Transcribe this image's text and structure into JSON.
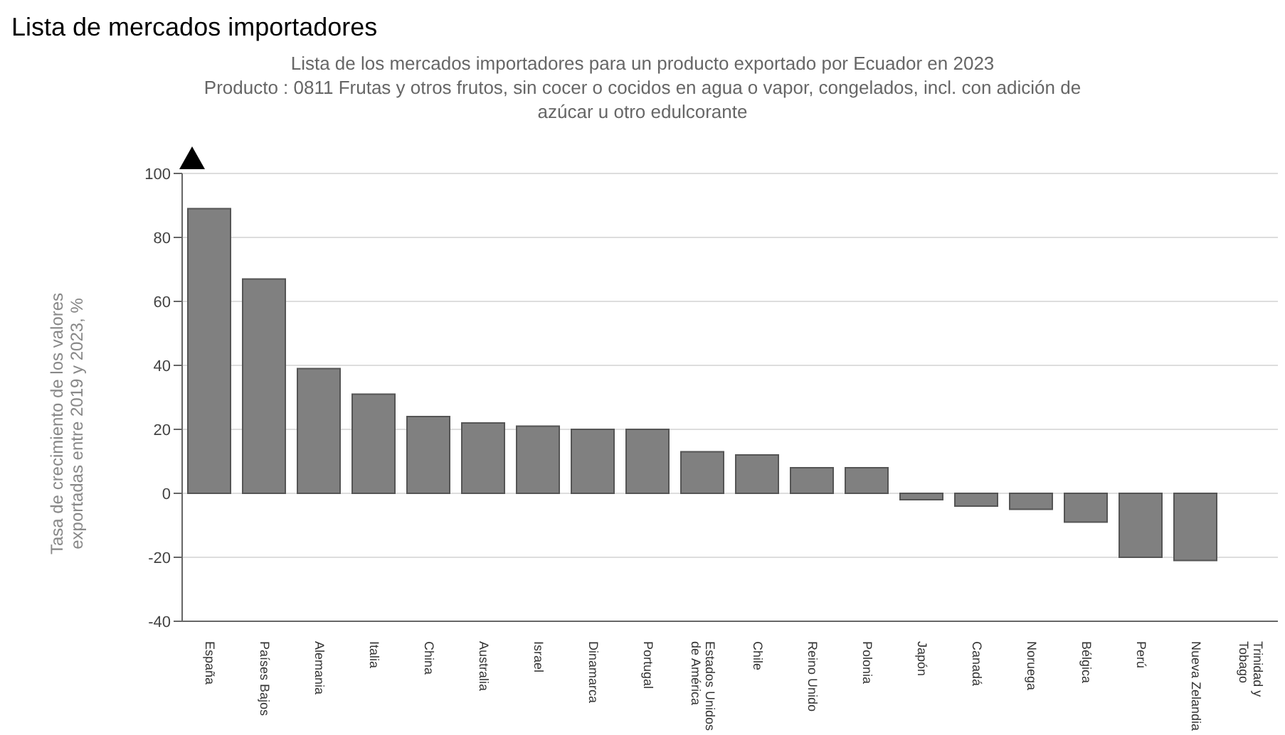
{
  "chart_data": {
    "type": "bar",
    "title": "Lista de mercados importadores",
    "subtitle": "Lista de los mercados importadores para un producto exportado por Ecuador en 2023\nProducto : 0811 Frutas y otros frutos, sin cocer o cocidos en agua o vapor, congelados, incl. con adición de azúcar u otro edulcorante",
    "ylabel": "Tasa de crecimiento de los valores exportadas entre 2019 y 2023, %",
    "categories": [
      "España",
      "Países Bajos",
      "Alemania",
      "Italia",
      "China",
      "Australia",
      "Israel",
      "Dinamarca",
      "Portugal",
      "Estados Unidos de América",
      "Chile",
      "Reino Unido",
      "Polonia",
      "Japón",
      "Canadá",
      "Noruega",
      "Bélgica",
      "Perú",
      "Nueva Zelandia",
      "Trinidad y Tobago"
    ],
    "values": [
      89,
      67,
      39,
      31,
      24,
      22,
      21,
      20,
      20,
      13,
      12,
      8,
      8,
      -2,
      -4,
      -5,
      -9,
      -20,
      -21,
      null
    ],
    "color": "#808080",
    "ylim": [
      -40,
      100
    ],
    "yticks": [
      -40,
      -20,
      0,
      20,
      40,
      60,
      80,
      100
    ],
    "grid": "y"
  }
}
